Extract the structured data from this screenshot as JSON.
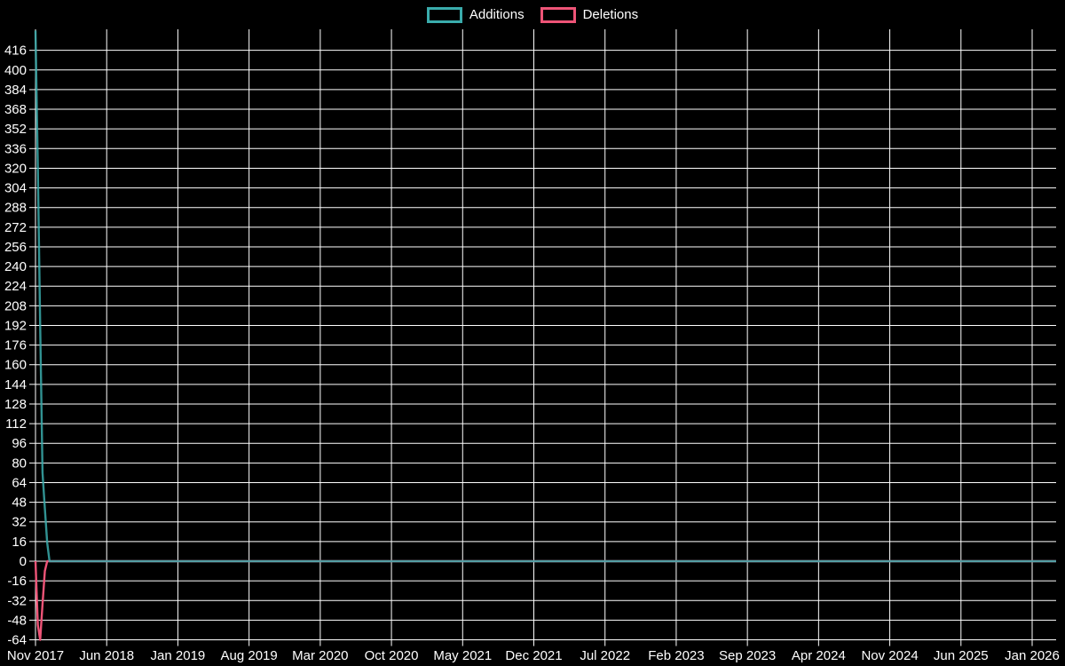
{
  "legend": {
    "items": [
      {
        "label": "Additions",
        "color": "#3aacac"
      },
      {
        "label": "Deletions",
        "color": "#ee5477"
      }
    ]
  },
  "chart_data": {
    "type": "line",
    "title": "",
    "xlabel": "",
    "ylabel": "",
    "x_tick_labels": [
      "Nov 2017",
      "Jun 2018",
      "Jan 2019",
      "Aug 2019",
      "Mar 2020",
      "Oct 2020",
      "May 2021",
      "Dec 2021",
      "Jul 2022",
      "Feb 2023",
      "Sep 2023",
      "Apr 2024",
      "Nov 2024",
      "Jun 2025",
      "Jan 2026"
    ],
    "x_tick_interval_months": 7,
    "x_resolution": "weekly",
    "y_tick_labels": [
      416,
      400,
      384,
      368,
      352,
      336,
      320,
      304,
      288,
      272,
      256,
      240,
      224,
      208,
      192,
      176,
      160,
      144,
      128,
      112,
      96,
      80,
      64,
      48,
      32,
      16,
      0,
      -16,
      -32,
      -48,
      -64
    ],
    "ylim": [
      -64,
      432
    ],
    "grid": true,
    "legend_position": "top-center",
    "background_color": "#000000",
    "grid_color": "#ffffff",
    "series": [
      {
        "name": "Additions",
        "color": "#3aacac",
        "first_weeks_values": [
          432,
          320,
          192,
          72,
          43,
          15,
          0
        ],
        "remaining_weeks_value": 0
      },
      {
        "name": "Deletions",
        "color": "#ee5477",
        "first_weeks_values": [
          0,
          -52,
          -64,
          -35,
          -8,
          0,
          0
        ],
        "remaining_weeks_value": 0
      }
    ]
  }
}
